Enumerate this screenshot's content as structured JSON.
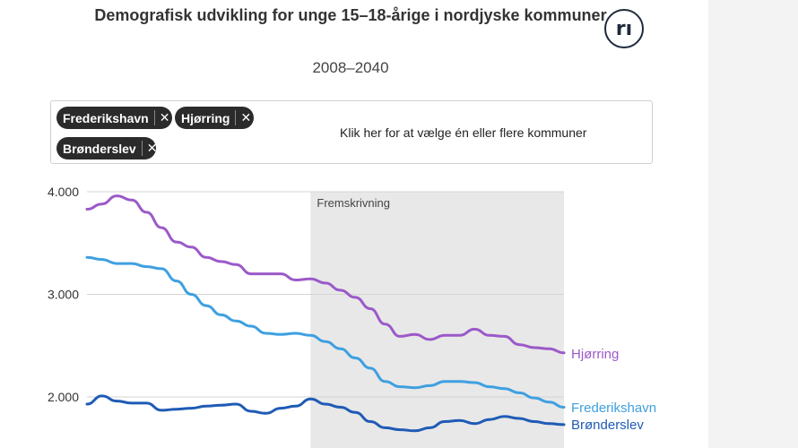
{
  "title": "Demografisk udvikling for unge 15–18-årige i nordjyske kommuner",
  "subtitle": "2008–2040",
  "logo_text": "rı",
  "selector": {
    "chips": [
      {
        "label": "Frederikshavn",
        "remove": "✕"
      },
      {
        "label": "Hjørring",
        "remove": "✕"
      },
      {
        "label": "Brønderslev",
        "remove": "✕"
      }
    ],
    "prompt": "Klik her for at vælge én eller flere kommuner"
  },
  "chart_data": {
    "type": "line",
    "title": "Demografisk udvikling for unge 15–18-årige i nordjyske kommuner",
    "subtitle": "2008–2040",
    "x_range": [
      2008,
      2040
    ],
    "ylim": [
      1500,
      4000
    ],
    "y_ticks": [
      2000,
      3000,
      4000
    ],
    "y_tick_labels": [
      "2.000",
      "3.000",
      "4.000"
    ],
    "grid": true,
    "projection": {
      "from": 2023,
      "to": 2040,
      "label": "Fremskrivning"
    },
    "series": [
      {
        "name": "Hjørring",
        "color": "#9b59c9",
        "x": [
          2008,
          2009,
          2010,
          2011,
          2012,
          2013,
          2014,
          2015,
          2016,
          2017,
          2018,
          2019,
          2020,
          2021,
          2022,
          2023,
          2024,
          2025,
          2026,
          2027,
          2028,
          2029,
          2030,
          2031,
          2032,
          2033,
          2034,
          2035,
          2036,
          2037,
          2038,
          2039,
          2040
        ],
        "values": [
          3830,
          3880,
          3960,
          3920,
          3800,
          3650,
          3510,
          3460,
          3360,
          3320,
          3290,
          3200,
          3200,
          3200,
          3140,
          3150,
          3110,
          3040,
          2970,
          2860,
          2710,
          2590,
          2610,
          2560,
          2600,
          2600,
          2660,
          2600,
          2590,
          2510,
          2480,
          2470,
          2430
        ]
      },
      {
        "name": "Frederikshavn",
        "color": "#3ea0e0",
        "x": [
          2008,
          2009,
          2010,
          2011,
          2012,
          2013,
          2014,
          2015,
          2016,
          2017,
          2018,
          2019,
          2020,
          2021,
          2022,
          2023,
          2024,
          2025,
          2026,
          2027,
          2028,
          2029,
          2030,
          2031,
          2032,
          2033,
          2034,
          2035,
          2036,
          2037,
          2038,
          2039,
          2040
        ],
        "values": [
          3360,
          3340,
          3300,
          3300,
          3270,
          3250,
          3130,
          3000,
          2890,
          2800,
          2740,
          2690,
          2620,
          2610,
          2620,
          2600,
          2540,
          2470,
          2380,
          2280,
          2150,
          2100,
          2090,
          2110,
          2150,
          2150,
          2140,
          2100,
          2080,
          2040,
          1990,
          1950,
          1900
        ]
      },
      {
        "name": "Brønderslev",
        "color": "#1f5bb5",
        "x": [
          2008,
          2009,
          2010,
          2011,
          2012,
          2013,
          2014,
          2015,
          2016,
          2017,
          2018,
          2019,
          2020,
          2021,
          2022,
          2023,
          2024,
          2025,
          2026,
          2027,
          2028,
          2029,
          2030,
          2031,
          2032,
          2033,
          2034,
          2035,
          2036,
          2037,
          2038,
          2039,
          2040
        ],
        "values": [
          1930,
          2010,
          1960,
          1940,
          1940,
          1870,
          1880,
          1890,
          1910,
          1920,
          1930,
          1860,
          1840,
          1890,
          1910,
          1980,
          1930,
          1900,
          1850,
          1760,
          1700,
          1680,
          1670,
          1700,
          1760,
          1770,
          1740,
          1780,
          1810,
          1790,
          1760,
          1740,
          1730
        ]
      }
    ]
  }
}
